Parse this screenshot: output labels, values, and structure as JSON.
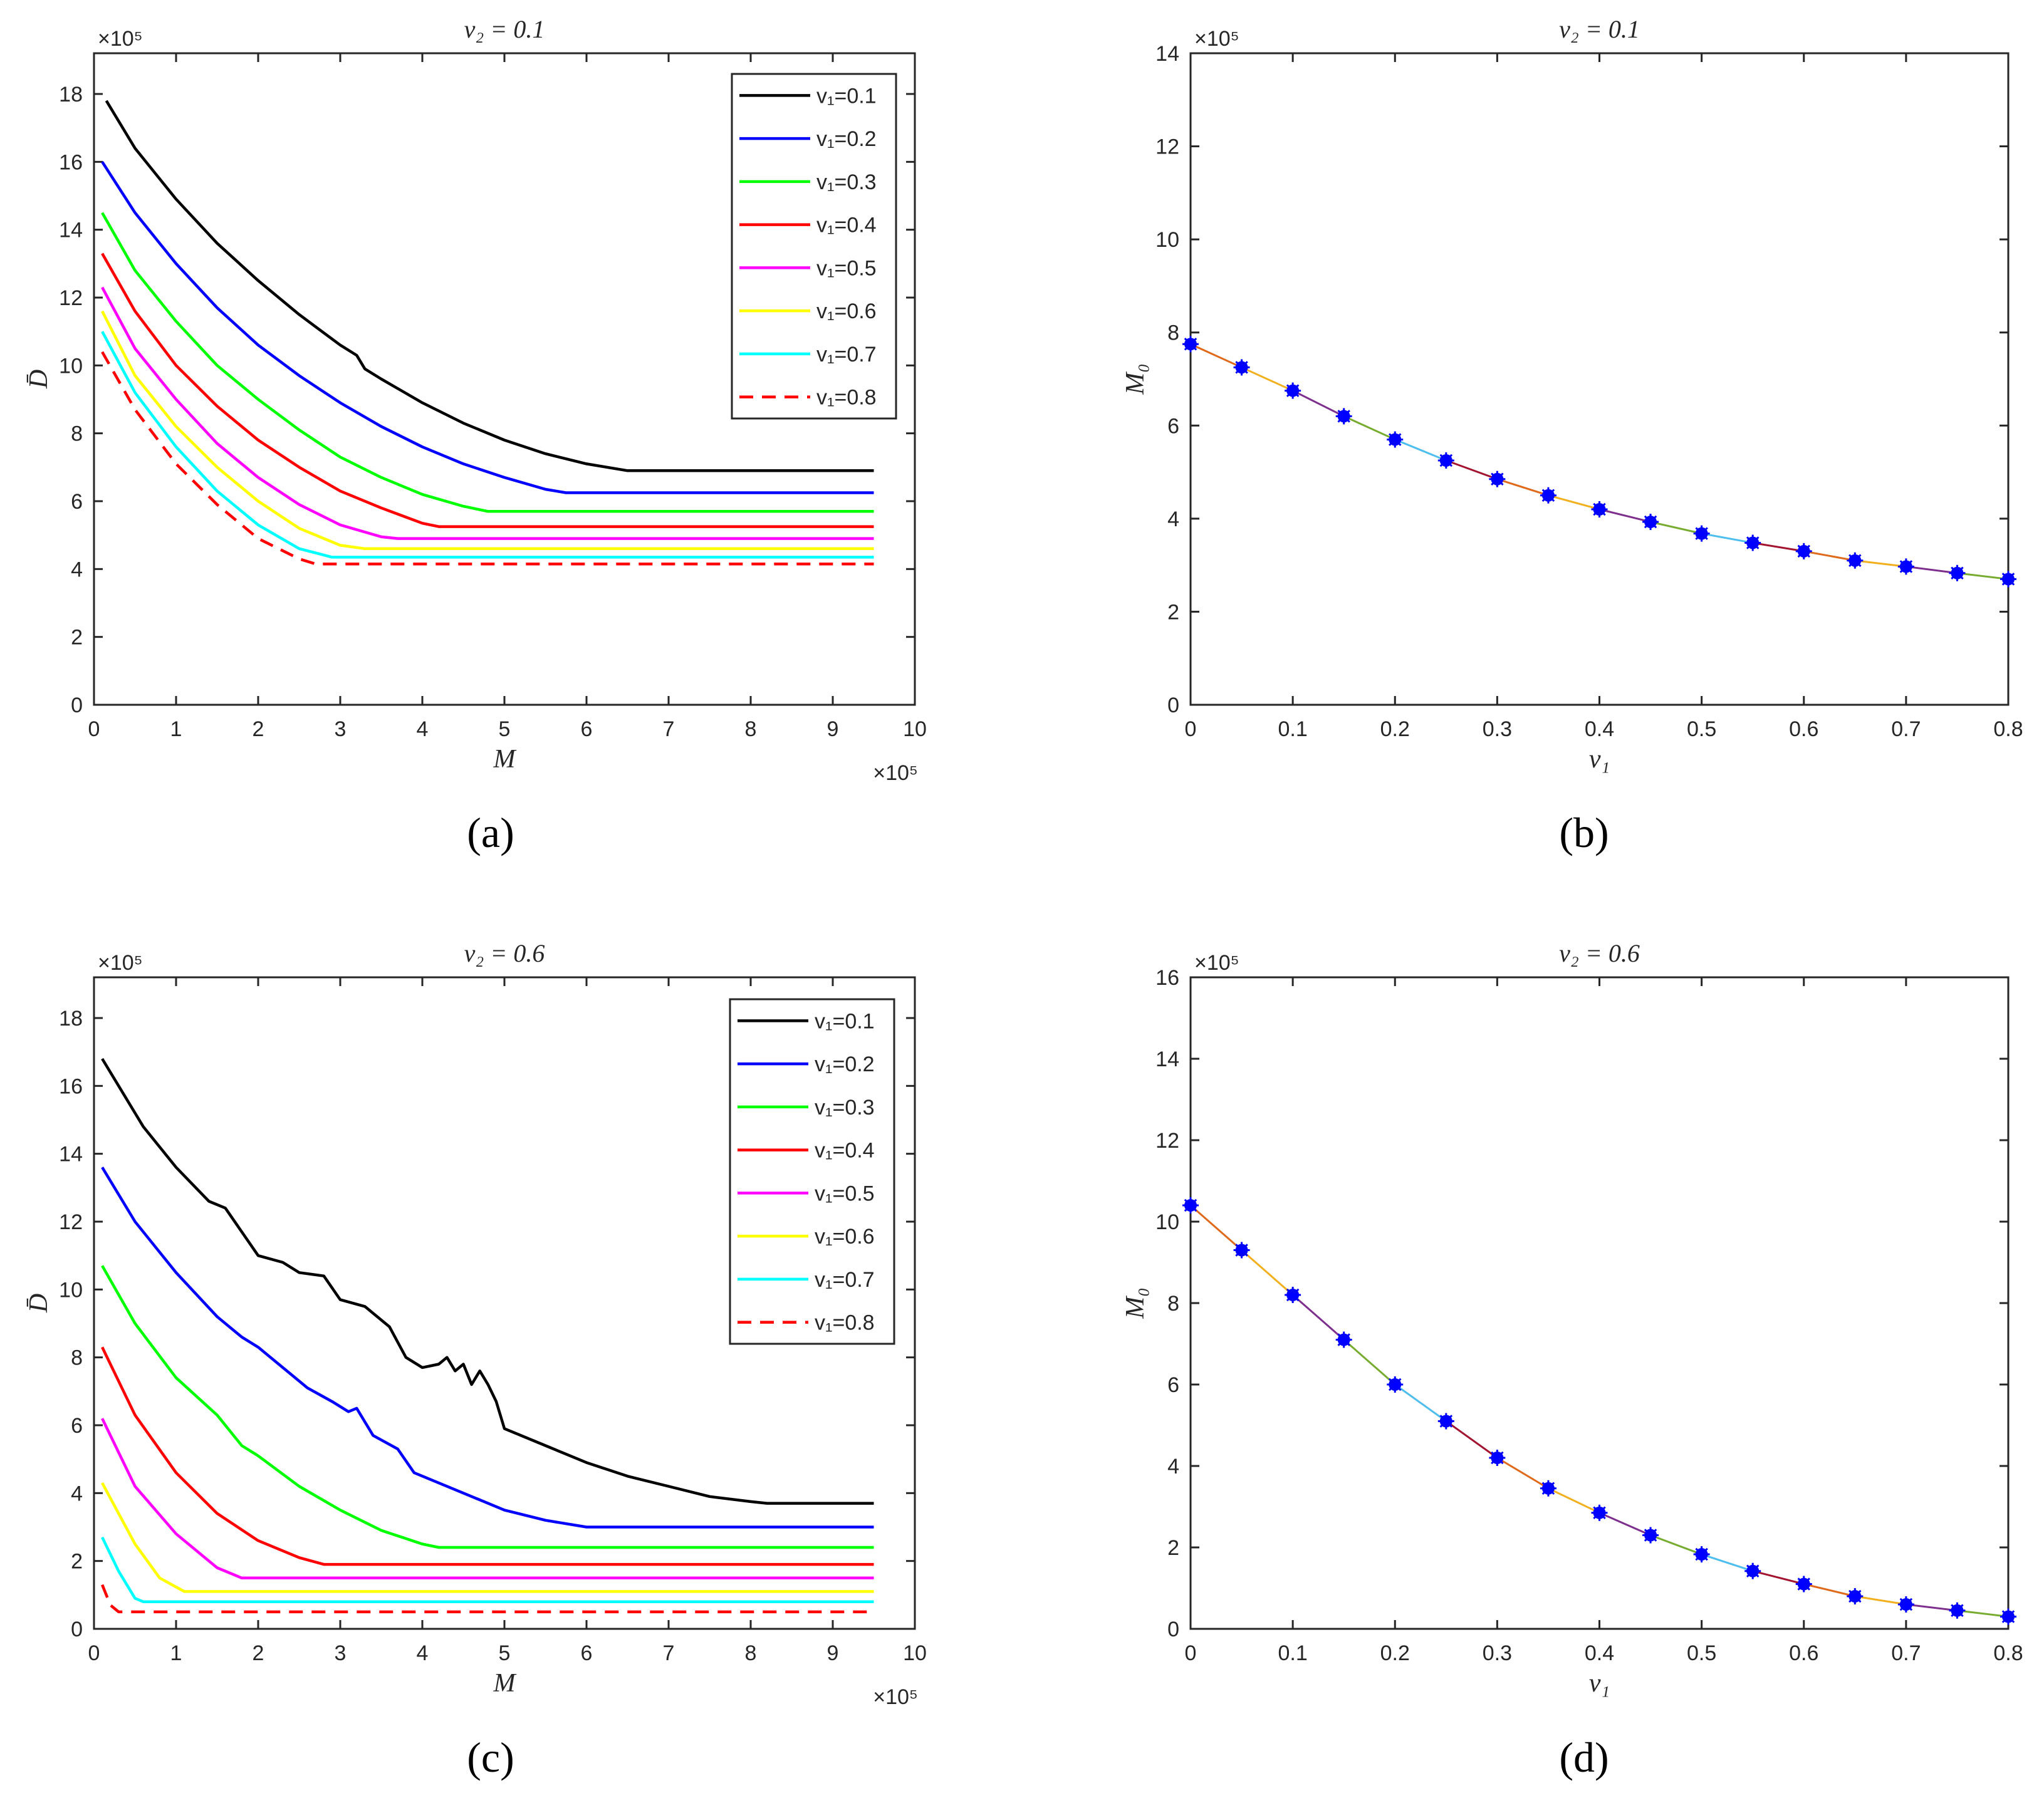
{
  "chart_data": [
    {
      "id": "a",
      "type": "line",
      "panel_label": "(a)",
      "title": "v₂ = 0.1",
      "xlabel": "M",
      "ylabel": "D̄",
      "x_exponent": "×10⁵",
      "y_exponent": "×10⁵",
      "xlim": [
        0,
        10
      ],
      "ylim": [
        0,
        19.2
      ],
      "xticks": [
        0,
        1,
        2,
        3,
        4,
        5,
        6,
        7,
        8,
        9,
        10
      ],
      "yticks": [
        0,
        2,
        4,
        6,
        8,
        10,
        12,
        14,
        16,
        18
      ],
      "legend_position": "top-right",
      "series": [
        {
          "name": "v₁=0.1",
          "color": "#000000",
          "dash": "solid",
          "points": [
            [
              0.15,
              17.8
            ],
            [
              0.5,
              16.4
            ],
            [
              1,
              14.9
            ],
            [
              1.5,
              13.6
            ],
            [
              2,
              12.5
            ],
            [
              2.5,
              11.5
            ],
            [
              3.0,
              10.6
            ],
            [
              3.2,
              10.3
            ],
            [
              3.3,
              9.9
            ],
            [
              3.5,
              9.6
            ],
            [
              4,
              8.9
            ],
            [
              4.5,
              8.3
            ],
            [
              5,
              7.8
            ],
            [
              5.5,
              7.4
            ],
            [
              6,
              7.1
            ],
            [
              6.5,
              6.9
            ],
            [
              6.7,
              6.9
            ],
            [
              9.5,
              6.9
            ]
          ]
        },
        {
          "name": "v₁=0.2",
          "color": "#0000ff",
          "dash": "solid",
          "points": [
            [
              0.1,
              16.0
            ],
            [
              0.5,
              14.5
            ],
            [
              1,
              13.0
            ],
            [
              1.5,
              11.7
            ],
            [
              2,
              10.6
            ],
            [
              2.5,
              9.7
            ],
            [
              3,
              8.9
            ],
            [
              3.5,
              8.2
            ],
            [
              4,
              7.6
            ],
            [
              4.5,
              7.1
            ],
            [
              5,
              6.7
            ],
            [
              5.5,
              6.35
            ],
            [
              5.75,
              6.25
            ],
            [
              9.5,
              6.25
            ]
          ]
        },
        {
          "name": "v₁=0.3",
          "color": "#00ff00",
          "dash": "solid",
          "points": [
            [
              0.1,
              14.5
            ],
            [
              0.5,
              12.8
            ],
            [
              1,
              11.3
            ],
            [
              1.5,
              10.0
            ],
            [
              2,
              9.0
            ],
            [
              2.5,
              8.1
            ],
            [
              3,
              7.3
            ],
            [
              3.5,
              6.7
            ],
            [
              4,
              6.2
            ],
            [
              4.5,
              5.85
            ],
            [
              4.8,
              5.7
            ],
            [
              9.5,
              5.7
            ]
          ]
        },
        {
          "name": "v₁=0.4",
          "color": "#ff0000",
          "dash": "solid",
          "points": [
            [
              0.1,
              13.3
            ],
            [
              0.5,
              11.6
            ],
            [
              1,
              10.0
            ],
            [
              1.5,
              8.8
            ],
            [
              2,
              7.8
            ],
            [
              2.5,
              7.0
            ],
            [
              3,
              6.3
            ],
            [
              3.5,
              5.8
            ],
            [
              4,
              5.35
            ],
            [
              4.2,
              5.25
            ],
            [
              9.5,
              5.25
            ]
          ]
        },
        {
          "name": "v₁=0.5",
          "color": "#ff00ff",
          "dash": "solid",
          "points": [
            [
              0.1,
              12.3
            ],
            [
              0.5,
              10.5
            ],
            [
              1,
              9.0
            ],
            [
              1.5,
              7.7
            ],
            [
              2,
              6.7
            ],
            [
              2.5,
              5.9
            ],
            [
              3,
              5.3
            ],
            [
              3.5,
              4.95
            ],
            [
              3.7,
              4.9
            ],
            [
              9.5,
              4.9
            ]
          ]
        },
        {
          "name": "v₁=0.6",
          "color": "#ffff00",
          "dash": "solid",
          "points": [
            [
              0.1,
              11.6
            ],
            [
              0.5,
              9.7
            ],
            [
              1,
              8.2
            ],
            [
              1.5,
              7.0
            ],
            [
              2,
              6.0
            ],
            [
              2.5,
              5.2
            ],
            [
              3,
              4.7
            ],
            [
              3.3,
              4.6
            ],
            [
              9.5,
              4.6
            ]
          ]
        },
        {
          "name": "v₁=0.7",
          "color": "#00ffff",
          "dash": "solid",
          "points": [
            [
              0.1,
              11.0
            ],
            [
              0.5,
              9.2
            ],
            [
              1,
              7.6
            ],
            [
              1.5,
              6.3
            ],
            [
              2,
              5.3
            ],
            [
              2.5,
              4.6
            ],
            [
              2.9,
              4.35
            ],
            [
              9.5,
              4.35
            ]
          ]
        },
        {
          "name": "v₁=0.8",
          "color": "#ff0000",
          "dash": "dashed",
          "points": [
            [
              0.1,
              10.4
            ],
            [
              0.5,
              8.7
            ],
            [
              1,
              7.1
            ],
            [
              1.5,
              5.9
            ],
            [
              2,
              4.9
            ],
            [
              2.5,
              4.3
            ],
            [
              2.7,
              4.15
            ],
            [
              9.5,
              4.15
            ]
          ]
        }
      ]
    },
    {
      "id": "b",
      "type": "line",
      "panel_label": "(b)",
      "title": "v₂ = 0.1",
      "xlabel": "v₁",
      "ylabel": "M₀",
      "y_exponent": "×10⁵",
      "xlim": [
        0,
        0.8
      ],
      "ylim": [
        0,
        14
      ],
      "xticks": [
        "0",
        "0.1",
        "0.2",
        "0.3",
        "0.4",
        "0.5",
        "0.6",
        "0.7",
        "0.8"
      ],
      "yticks": [
        0,
        2,
        4,
        6,
        8,
        10,
        12,
        14
      ],
      "marker": "asterisk",
      "marker_color": "#0000ff",
      "segment_colors": [
        "#e06a1b",
        "#f2b01e",
        "#7e2f8e",
        "#77ac30",
        "#4dbeee",
        "#a2142f"
      ],
      "x": [
        0,
        0.05,
        0.1,
        0.15,
        0.2,
        0.25,
        0.3,
        0.35,
        0.4,
        0.45,
        0.5,
        0.55,
        0.6,
        0.65,
        0.7,
        0.75,
        0.8
      ],
      "y": [
        7.75,
        7.25,
        6.75,
        6.2,
        5.7,
        5.25,
        4.85,
        4.5,
        4.2,
        3.93,
        3.68,
        3.48,
        3.3,
        3.1,
        2.97,
        2.83,
        2.7
      ]
    },
    {
      "id": "c",
      "type": "line",
      "panel_label": "(c)",
      "title": "v₂ = 0.6",
      "xlabel": "M",
      "ylabel": "D̄",
      "x_exponent": "×10⁵",
      "y_exponent": "×10⁵",
      "xlim": [
        0,
        10
      ],
      "ylim": [
        0,
        19.2
      ],
      "xticks": [
        0,
        1,
        2,
        3,
        4,
        5,
        6,
        7,
        8,
        9,
        10
      ],
      "yticks": [
        0,
        2,
        4,
        6,
        8,
        10,
        12,
        14,
        16,
        18
      ],
      "legend_position": "top-right",
      "series": [
        {
          "name": "v₁=0.1",
          "color": "#000000",
          "dash": "solid",
          "points": [
            [
              0.1,
              16.8
            ],
            [
              0.3,
              16.0
            ],
            [
              0.6,
              14.8
            ],
            [
              1.0,
              13.6
            ],
            [
              1.4,
              12.6
            ],
            [
              1.6,
              12.4
            ],
            [
              2.0,
              11.0
            ],
            [
              2.3,
              10.8
            ],
            [
              2.5,
              10.5
            ],
            [
              2.8,
              10.4
            ],
            [
              3.0,
              9.7
            ],
            [
              3.3,
              9.5
            ],
            [
              3.6,
              8.9
            ],
            [
              3.8,
              8.0
            ],
            [
              4.0,
              7.7
            ],
            [
              4.2,
              7.8
            ],
            [
              4.3,
              8.0
            ],
            [
              4.4,
              7.6
            ],
            [
              4.5,
              7.8
            ],
            [
              4.6,
              7.2
            ],
            [
              4.7,
              7.6
            ],
            [
              4.8,
              7.2
            ],
            [
              4.9,
              6.7
            ],
            [
              5.0,
              5.9
            ],
            [
              5.5,
              5.4
            ],
            [
              6.0,
              4.9
            ],
            [
              6.5,
              4.5
            ],
            [
              7.0,
              4.2
            ],
            [
              7.5,
              3.9
            ],
            [
              8.0,
              3.75
            ],
            [
              8.2,
              3.7
            ],
            [
              9.5,
              3.7
            ]
          ]
        },
        {
          "name": "v₁=0.2",
          "color": "#0000ff",
          "dash": "solid",
          "points": [
            [
              0.1,
              13.6
            ],
            [
              0.5,
              12.0
            ],
            [
              1.0,
              10.5
            ],
            [
              1.5,
              9.2
            ],
            [
              1.8,
              8.6
            ],
            [
              2.0,
              8.3
            ],
            [
              2.3,
              7.7
            ],
            [
              2.6,
              7.1
            ],
            [
              2.9,
              6.7
            ],
            [
              3.1,
              6.4
            ],
            [
              3.2,
              6.5
            ],
            [
              3.4,
              5.7
            ],
            [
              3.7,
              5.3
            ],
            [
              3.9,
              4.6
            ],
            [
              4.5,
              4.0
            ],
            [
              5.0,
              3.5
            ],
            [
              5.5,
              3.2
            ],
            [
              6.0,
              3.0
            ],
            [
              9.5,
              3.0
            ]
          ]
        },
        {
          "name": "v₁=0.3",
          "color": "#00ff00",
          "dash": "solid",
          "points": [
            [
              0.1,
              10.7
            ],
            [
              0.5,
              9.0
            ],
            [
              1.0,
              7.4
            ],
            [
              1.5,
              6.3
            ],
            [
              1.8,
              5.4
            ],
            [
              2.0,
              5.1
            ],
            [
              2.5,
              4.2
            ],
            [
              3.0,
              3.5
            ],
            [
              3.5,
              2.9
            ],
            [
              4.0,
              2.5
            ],
            [
              4.2,
              2.4
            ],
            [
              9.5,
              2.4
            ]
          ]
        },
        {
          "name": "v₁=0.4",
          "color": "#ff0000",
          "dash": "solid",
          "points": [
            [
              0.1,
              8.3
            ],
            [
              0.5,
              6.3
            ],
            [
              1.0,
              4.6
            ],
            [
              1.5,
              3.4
            ],
            [
              2.0,
              2.6
            ],
            [
              2.5,
              2.1
            ],
            [
              2.8,
              1.9
            ],
            [
              9.5,
              1.9
            ]
          ]
        },
        {
          "name": "v₁=0.5",
          "color": "#ff00ff",
          "dash": "solid",
          "points": [
            [
              0.1,
              6.2
            ],
            [
              0.5,
              4.2
            ],
            [
              1.0,
              2.8
            ],
            [
              1.5,
              1.8
            ],
            [
              1.8,
              1.5
            ],
            [
              9.5,
              1.5
            ]
          ]
        },
        {
          "name": "v₁=0.6",
          "color": "#ffff00",
          "dash": "solid",
          "points": [
            [
              0.1,
              4.3
            ],
            [
              0.5,
              2.5
            ],
            [
              0.8,
              1.5
            ],
            [
              1.1,
              1.1
            ],
            [
              9.5,
              1.1
            ]
          ]
        },
        {
          "name": "v₁=0.7",
          "color": "#00ffff",
          "dash": "solid",
          "points": [
            [
              0.1,
              2.7
            ],
            [
              0.3,
              1.7
            ],
            [
              0.5,
              0.9
            ],
            [
              0.6,
              0.8
            ],
            [
              9.5,
              0.8
            ]
          ]
        },
        {
          "name": "v₁=0.8",
          "color": "#ff0000",
          "dash": "dashed",
          "points": [
            [
              0.1,
              1.3
            ],
            [
              0.2,
              0.7
            ],
            [
              0.3,
              0.5
            ],
            [
              9.5,
              0.5
            ]
          ]
        }
      ]
    },
    {
      "id": "d",
      "type": "line",
      "panel_label": "(d)",
      "title": "v₂ = 0.6",
      "xlabel": "v₁",
      "ylabel": "M₀",
      "y_exponent": "×10⁵",
      "xlim": [
        0,
        0.8
      ],
      "ylim": [
        0,
        16
      ],
      "xticks": [
        "0",
        "0.1",
        "0.2",
        "0.3",
        "0.4",
        "0.5",
        "0.6",
        "0.7",
        "0.8"
      ],
      "yticks": [
        0,
        2,
        4,
        6,
        8,
        10,
        12,
        14,
        16
      ],
      "marker": "asterisk",
      "marker_color": "#0000ff",
      "segment_colors": [
        "#e06a1b",
        "#f2b01e",
        "#7e2f8e",
        "#77ac30",
        "#4dbeee",
        "#a2142f"
      ],
      "x": [
        0,
        0.05,
        0.1,
        0.15,
        0.2,
        0.25,
        0.3,
        0.35,
        0.4,
        0.45,
        0.5,
        0.55,
        0.6,
        0.65,
        0.7,
        0.75,
        0.8
      ],
      "y": [
        10.4,
        9.3,
        8.2,
        7.1,
        6.0,
        5.1,
        4.2,
        3.45,
        2.85,
        2.3,
        1.83,
        1.42,
        1.1,
        0.8,
        0.6,
        0.45,
        0.3
      ]
    }
  ]
}
